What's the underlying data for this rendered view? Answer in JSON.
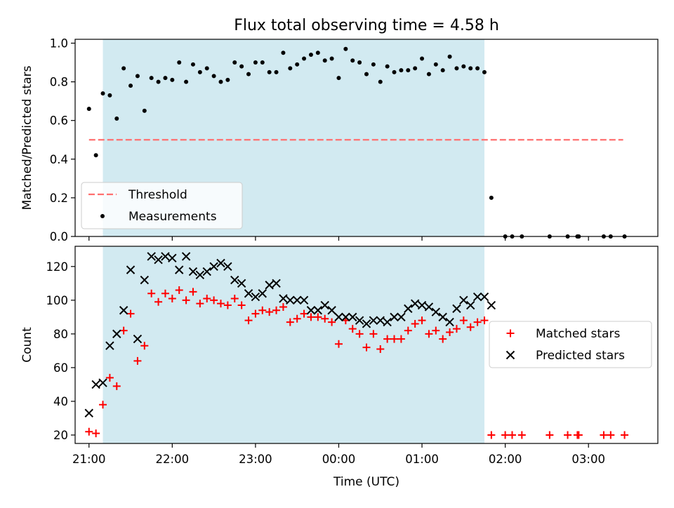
{
  "title": "Flux total observing time = 4.58 h",
  "colors": {
    "shade": "#add8e6",
    "threshold": "#ff6f6f",
    "matched": "#ff0000",
    "predicted": "#000000",
    "measurement": "#000000"
  },
  "chart_data": [
    {
      "type": "scatter",
      "ylabel": "Matched/Predicted stars",
      "xlim": [
        "20:50",
        "03:50"
      ],
      "ylim": [
        0,
        1.02
      ],
      "yticks": [
        0.0,
        0.2,
        0.4,
        0.6,
        0.8,
        1.0
      ],
      "ytick_labels": [
        "0.0",
        "0.2",
        "0.4",
        "0.6",
        "0.8",
        "1.0"
      ],
      "shaded_span": [
        "21:10",
        "01:45"
      ],
      "legend_position": "lower-left",
      "legend": [
        "Threshold",
        "Measurements"
      ],
      "threshold": {
        "name": "Threshold",
        "from": "21:00",
        "to": "03:25",
        "value": 0.5
      },
      "series": [
        {
          "name": "Measurements",
          "x": [
            "21:00",
            "21:05",
            "21:10",
            "21:15",
            "21:20",
            "21:25",
            "21:30",
            "21:35",
            "21:40",
            "21:45",
            "21:50",
            "21:55",
            "22:00",
            "22:05",
            "22:10",
            "22:15",
            "22:20",
            "22:25",
            "22:30",
            "22:35",
            "22:40",
            "22:45",
            "22:50",
            "22:55",
            "23:00",
            "23:05",
            "23:10",
            "23:15",
            "23:20",
            "23:25",
            "23:30",
            "23:35",
            "23:40",
            "23:45",
            "23:50",
            "23:55",
            "00:00",
            "00:05",
            "00:10",
            "00:15",
            "00:20",
            "00:25",
            "00:30",
            "00:35",
            "00:40",
            "00:45",
            "00:50",
            "00:55",
            "01:00",
            "01:05",
            "01:10",
            "01:15",
            "01:20",
            "01:25",
            "01:30",
            "01:35",
            "01:40",
            "01:45",
            "01:50",
            "02:00",
            "02:05",
            "02:12",
            "02:32",
            "02:45",
            "02:52",
            "02:53",
            "03:11",
            "03:16",
            "03:26"
          ],
          "y": [
            0.66,
            0.42,
            0.74,
            0.73,
            0.61,
            0.87,
            0.78,
            0.83,
            0.65,
            0.82,
            0.8,
            0.82,
            0.81,
            0.9,
            0.8,
            0.89,
            0.85,
            0.87,
            0.83,
            0.8,
            0.81,
            0.9,
            0.88,
            0.84,
            0.9,
            0.9,
            0.85,
            0.85,
            0.95,
            0.87,
            0.89,
            0.92,
            0.94,
            0.95,
            0.91,
            0.92,
            0.82,
            0.97,
            0.91,
            0.9,
            0.84,
            0.89,
            0.8,
            0.88,
            0.85,
            0.86,
            0.86,
            0.87,
            0.92,
            0.84,
            0.89,
            0.86,
            0.93,
            0.87,
            0.88,
            0.87,
            0.87,
            0.85,
            0.2,
            0.0,
            0.0,
            0.0,
            0.0,
            0.0,
            0.0,
            0.0,
            0.0,
            0.0,
            0.0
          ]
        }
      ]
    },
    {
      "type": "scatter",
      "xlabel": "Time (UTC)",
      "ylabel": "Count",
      "xlim": [
        "20:50",
        "03:50"
      ],
      "ylim": [
        15,
        132
      ],
      "yticks": [
        20,
        40,
        60,
        80,
        100,
        120
      ],
      "ytick_labels": [
        "20",
        "40",
        "60",
        "80",
        "100",
        "120"
      ],
      "xticks": [
        "21:00",
        "22:00",
        "23:00",
        "00:00",
        "01:00",
        "02:00",
        "03:00"
      ],
      "xtick_labels": [
        "21:00",
        "22:00",
        "23:00",
        "00:00",
        "01:00",
        "02:00",
        "03:00"
      ],
      "shaded_span": [
        "21:10",
        "01:45"
      ],
      "legend_position": "center-right",
      "legend": [
        "Matched stars",
        "Predicted stars"
      ],
      "series": [
        {
          "name": "Matched stars",
          "x": [
            "21:00",
            "21:05",
            "21:10",
            "21:15",
            "21:20",
            "21:25",
            "21:30",
            "21:35",
            "21:40",
            "21:45",
            "21:50",
            "21:55",
            "22:00",
            "22:05",
            "22:10",
            "22:15",
            "22:20",
            "22:25",
            "22:30",
            "22:35",
            "22:40",
            "22:45",
            "22:50",
            "22:55",
            "23:00",
            "23:05",
            "23:10",
            "23:15",
            "23:20",
            "23:25",
            "23:30",
            "23:35",
            "23:40",
            "23:45",
            "23:50",
            "23:55",
            "00:00",
            "00:05",
            "00:10",
            "00:15",
            "00:20",
            "00:25",
            "00:30",
            "00:35",
            "00:40",
            "00:45",
            "00:50",
            "00:55",
            "01:00",
            "01:05",
            "01:10",
            "01:15",
            "01:20",
            "01:25",
            "01:30",
            "01:35",
            "01:40",
            "01:45",
            "01:50",
            "02:00",
            "02:05",
            "02:12",
            "02:32",
            "02:45",
            "02:52",
            "02:53",
            "03:11",
            "03:16",
            "03:26"
          ],
          "y": [
            22,
            21,
            38,
            54,
            49,
            82,
            92,
            64,
            73,
            104,
            99,
            104,
            101,
            106,
            100,
            105,
            98,
            101,
            100,
            98,
            97,
            101,
            97,
            88,
            92,
            94,
            93,
            94,
            96,
            87,
            89,
            92,
            90,
            90,
            89,
            87,
            74,
            88,
            83,
            80,
            72,
            80,
            71,
            77,
            77,
            77,
            82,
            86,
            88,
            80,
            82,
            77,
            81,
            83,
            88,
            84,
            87,
            88,
            20,
            20,
            20,
            20,
            20,
            20,
            20,
            20,
            20,
            20,
            20
          ]
        },
        {
          "name": "Predicted stars",
          "x": [
            "21:00",
            "21:05",
            "21:10",
            "21:15",
            "21:20",
            "21:25",
            "21:30",
            "21:35",
            "21:40",
            "21:45",
            "21:50",
            "21:55",
            "22:00",
            "22:05",
            "22:10",
            "22:15",
            "22:20",
            "22:25",
            "22:30",
            "22:35",
            "22:40",
            "22:45",
            "22:50",
            "22:55",
            "23:00",
            "23:05",
            "23:10",
            "23:15",
            "23:20",
            "23:25",
            "23:30",
            "23:35",
            "23:40",
            "23:45",
            "23:50",
            "23:55",
            "00:00",
            "00:05",
            "00:10",
            "00:15",
            "00:20",
            "00:25",
            "00:30",
            "00:35",
            "00:40",
            "00:45",
            "00:50",
            "00:55",
            "01:00",
            "01:05",
            "01:10",
            "01:15",
            "01:20",
            "01:25",
            "01:30",
            "01:35",
            "01:40",
            "01:45",
            "01:50"
          ],
          "y": [
            33,
            50,
            51,
            73,
            80,
            94,
            118,
            77,
            112,
            126,
            124,
            126,
            125,
            118,
            126,
            117,
            115,
            117,
            120,
            122,
            120,
            112,
            110,
            104,
            102,
            104,
            109,
            110,
            101,
            100,
            100,
            100,
            94,
            94,
            97,
            94,
            90,
            90,
            90,
            88,
            86,
            88,
            88,
            87,
            90,
            90,
            95,
            98,
            97,
            96,
            93,
            90,
            87,
            95,
            100,
            97,
            102,
            102,
            97
          ]
        }
      ]
    }
  ]
}
